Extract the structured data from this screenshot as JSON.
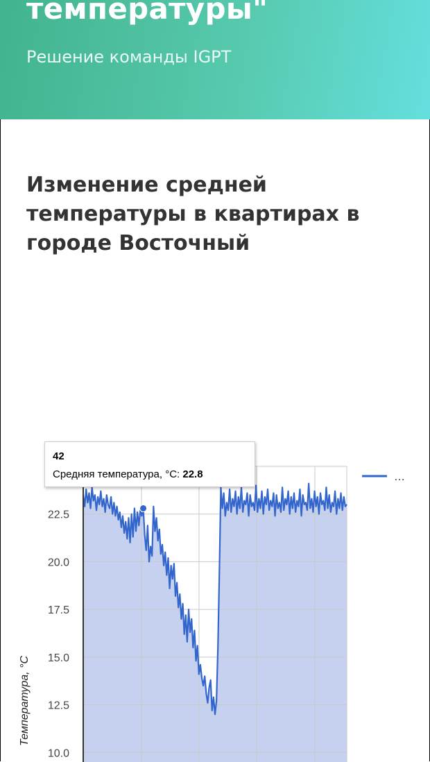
{
  "header": {
    "title": "температуры\"",
    "subtitle": "Решение команды IGPT"
  },
  "page": {
    "heading": "Изменение средней температуры в квартирах в городе Восточный"
  },
  "tooltip": {
    "x_value": "42",
    "label": "Средняя температура, °C: ",
    "value": "22.8"
  },
  "colors": {
    "line": "#3366cc",
    "area": "#c5d1ef",
    "grid": "#c9c9c9",
    "axis": "#333333"
  },
  "chart_data": {
    "type": "area",
    "title": "",
    "xlabel": "",
    "ylabel": "Температура, °C",
    "ylim": [
      9.5,
      25
    ],
    "yticks": [
      "22.5",
      "20.0",
      "17.5",
      "15.0",
      "12.5",
      "10.0"
    ],
    "legend": {
      "position": "top-right",
      "label": "…"
    },
    "highlight_point": {
      "x": 42,
      "y": 22.8
    },
    "series": [
      {
        "name": "Средняя температура, °C",
        "x_start": 1,
        "values": [
          23.5,
          22.9,
          23.8,
          23.1,
          23.6,
          22.8,
          23.9,
          23.2,
          23.5,
          22.7,
          23.4,
          23.0,
          23.7,
          22.9,
          23.3,
          22.6,
          23.5,
          23.0,
          22.8,
          23.4,
          22.5,
          23.1,
          22.4,
          22.9,
          22.2,
          22.6,
          21.8,
          22.4,
          21.5,
          22.1,
          21.2,
          22.3,
          21.0,
          22.5,
          21.3,
          22.8,
          21.6,
          22.6,
          21.9,
          22.7,
          22.4,
          22.8,
          21.4,
          20.6,
          21.9,
          20.0,
          20.8,
          20.3,
          22.9,
          21.6,
          22.3,
          21.1,
          21.7,
          20.4,
          20.9,
          19.8,
          20.5,
          19.3,
          20.2,
          18.6,
          19.8,
          19.1,
          19.9,
          18.2,
          18.9,
          17.6,
          18.3,
          17.0,
          17.8,
          16.2,
          17.2,
          15.8,
          17.5,
          16.3,
          17.0,
          15.5,
          16.4,
          14.8,
          15.6,
          14.1,
          14.6,
          13.9,
          13.5,
          14.0,
          13.1,
          12.6,
          13.4,
          13.8,
          12.2,
          12.9,
          12.0,
          12.7,
          15.5,
          19.5,
          23.9,
          22.8,
          23.6,
          22.4,
          23.1,
          22.7,
          23.8,
          22.6,
          23.3,
          22.9,
          23.7,
          22.5,
          23.4,
          22.8,
          23.9,
          22.6,
          23.2,
          23.0,
          23.6,
          22.4,
          23.5,
          22.9,
          23.1,
          22.7,
          24.0,
          22.6,
          23.3,
          22.8,
          23.7,
          22.5,
          23.4,
          23.0,
          23.8,
          22.7,
          23.2,
          22.9,
          23.6,
          22.4,
          23.5,
          22.8,
          23.1,
          22.6,
          23.9,
          22.7,
          23.3,
          23.0,
          23.7,
          22.5,
          23.4,
          22.8,
          23.6,
          22.6,
          23.2,
          22.9,
          23.8,
          22.4,
          23.5,
          23.0,
          23.1,
          22.7,
          24.1,
          22.8,
          23.3,
          22.6,
          23.7,
          22.9,
          23.4,
          22.5,
          23.6,
          23.0,
          23.2,
          22.7,
          23.9,
          22.8,
          23.5,
          22.6,
          23.1,
          22.9,
          23.7,
          22.5,
          23.3,
          22.8,
          23.6,
          22.7,
          23.4,
          22.9,
          23.0
        ]
      }
    ]
  }
}
